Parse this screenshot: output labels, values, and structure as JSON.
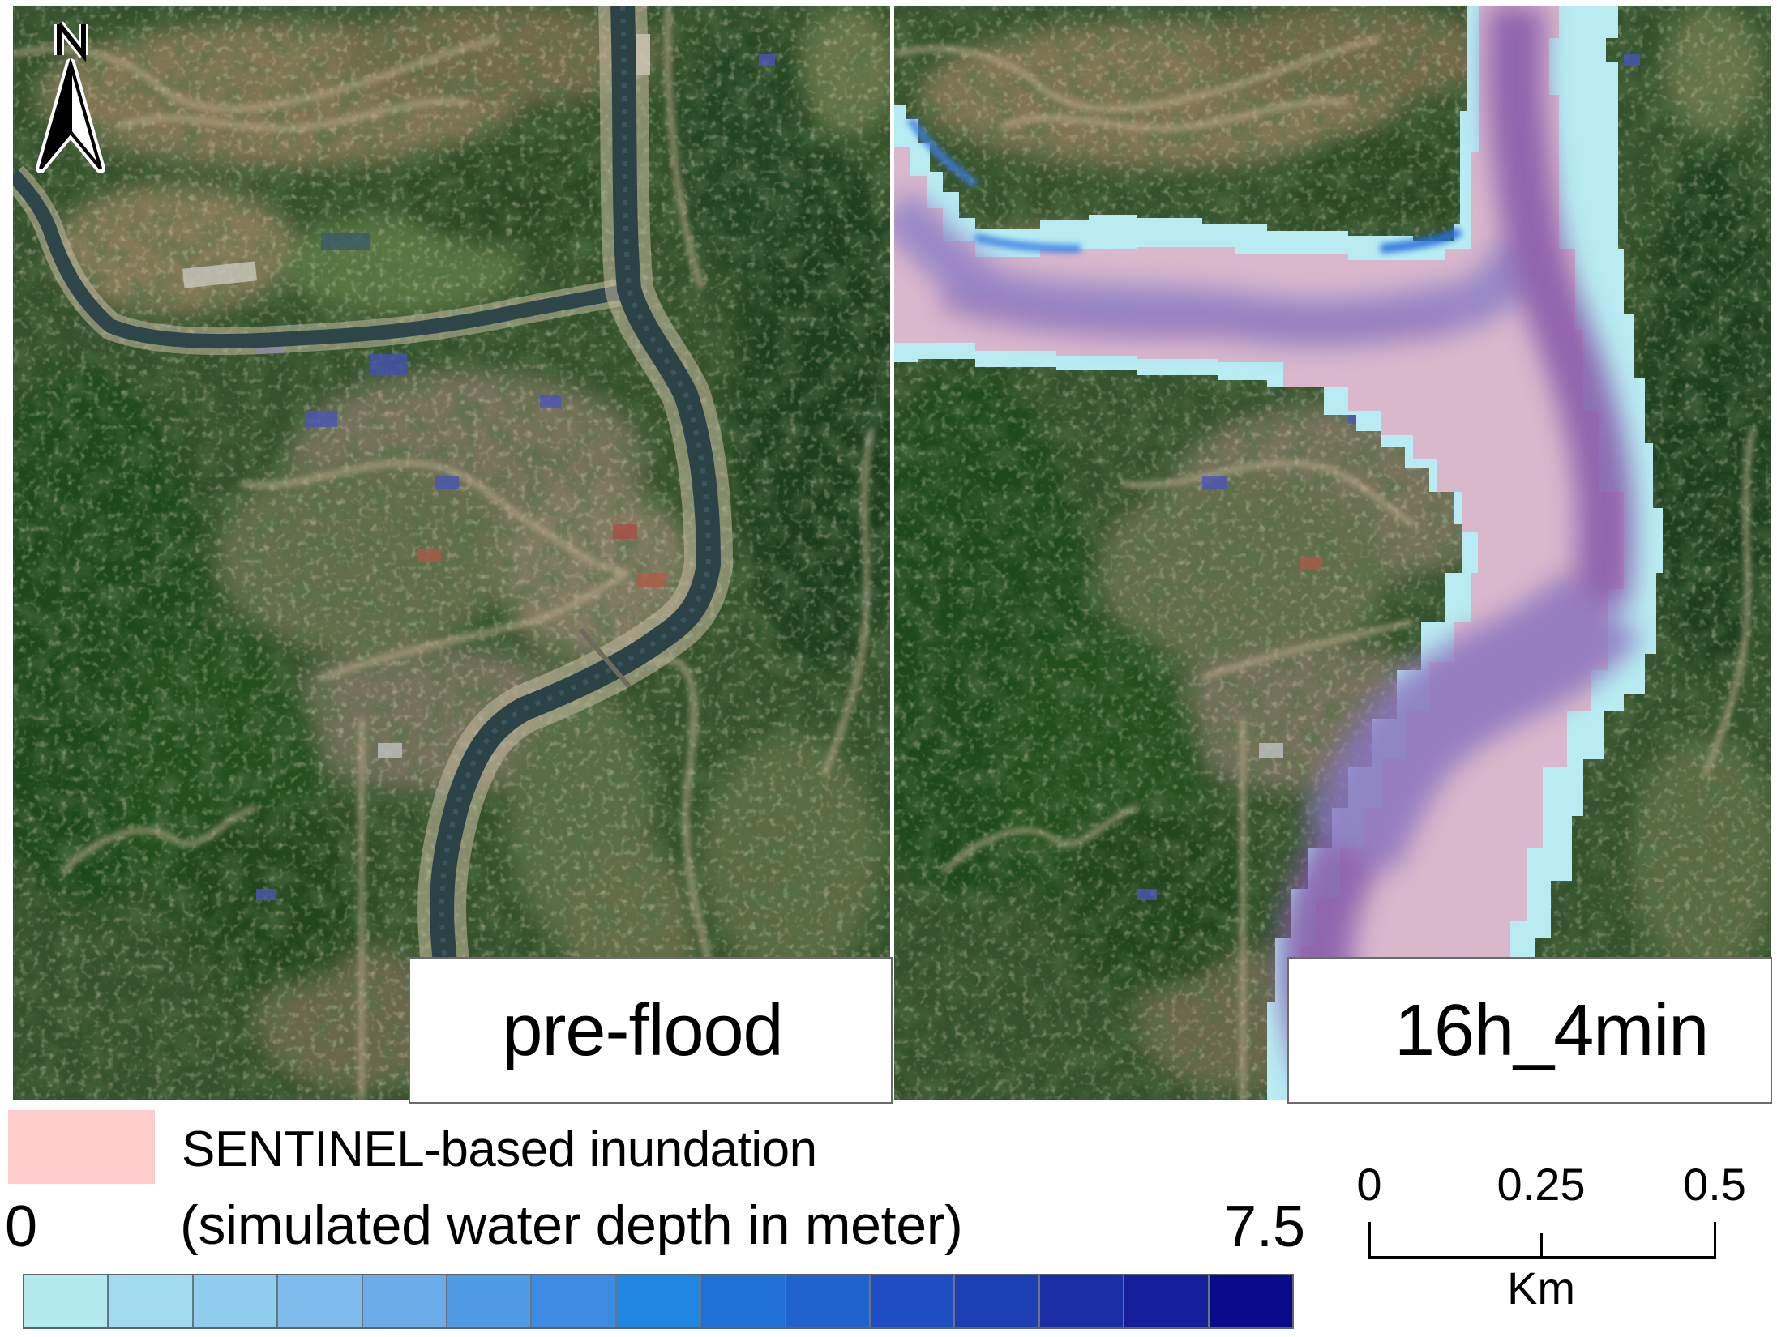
{
  "figure": {
    "panels": [
      {
        "id": "pre-flood",
        "label": "pre-flood"
      },
      {
        "id": "simulation",
        "label": "16h_4min"
      }
    ],
    "north_arrow": {
      "letter": "N",
      "icon": "north-arrow-icon"
    }
  },
  "legend": {
    "sentinel": {
      "label": "SENTINEL-based inundation",
      "color": "#FFCCCC"
    },
    "depth": {
      "title": "(simulated water depth in meter)",
      "min_label": "0",
      "max_label": "7.5",
      "min": 0,
      "max": 7.5,
      "unit": "meter",
      "colors": [
        "#B2EAEE",
        "#A1DAEC",
        "#8FCCEE",
        "#7DBCEB",
        "#6CADE9",
        "#4F9BE6",
        "#3C8CE4",
        "#1F86E2",
        "#2170D8",
        "#2062CE",
        "#1E4EC2",
        "#1C3FB4",
        "#1A2FA6",
        "#151F9C",
        "#0A0A8C"
      ]
    }
  },
  "scale_bar": {
    "ticks": [
      "0",
      "0.25",
      "0.5"
    ],
    "unit": "Km"
  },
  "colors": {
    "flood_shallow": "#B8ECF2",
    "sentinel_overlap": "#D9B8CC",
    "flood_deep": "#8A60B0",
    "river": "#2E464A",
    "vegetation": "#2F4A28"
  }
}
